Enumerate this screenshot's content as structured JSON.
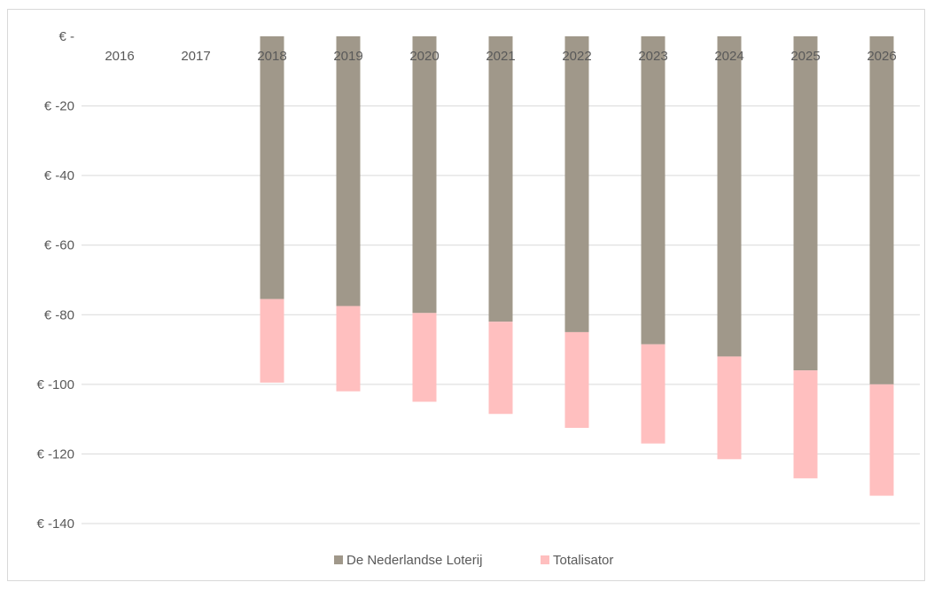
{
  "chart_data": {
    "type": "bar",
    "stacked": true,
    "categories": [
      "2016",
      "2017",
      "2018",
      "2019",
      "2020",
      "2021",
      "2022",
      "2023",
      "2024",
      "2025",
      "2026"
    ],
    "series": [
      {
        "name": "De Nederlandse Loterij",
        "color": "#a0988a",
        "values": [
          0,
          0,
          -75.5,
          -77.5,
          -79.5,
          -82,
          -85,
          -88.5,
          -92,
          -96,
          -100
        ]
      },
      {
        "name": "Totalisator",
        "color": "#ffbfbf",
        "values": [
          0,
          0,
          -24,
          -24.5,
          -25.5,
          -26.5,
          -27.5,
          -28.5,
          -29.5,
          -31,
          -32
        ]
      }
    ],
    "y_ticks": [
      0,
      -20,
      -40,
      -60,
      -80,
      -100,
      -120,
      -140
    ],
    "y_tick_labels": [
      "€ -",
      "€ -20",
      "€ -40",
      "€ -60",
      "€ -80",
      "€ -100",
      "€ -120",
      "€ -140"
    ],
    "ylim": [
      -140,
      0
    ],
    "title": "",
    "xlabel": "",
    "ylabel": "",
    "grid": true,
    "gridline_color": "#d9d9d9",
    "tick_label_color": "#595959",
    "legend_position": "bottom"
  }
}
